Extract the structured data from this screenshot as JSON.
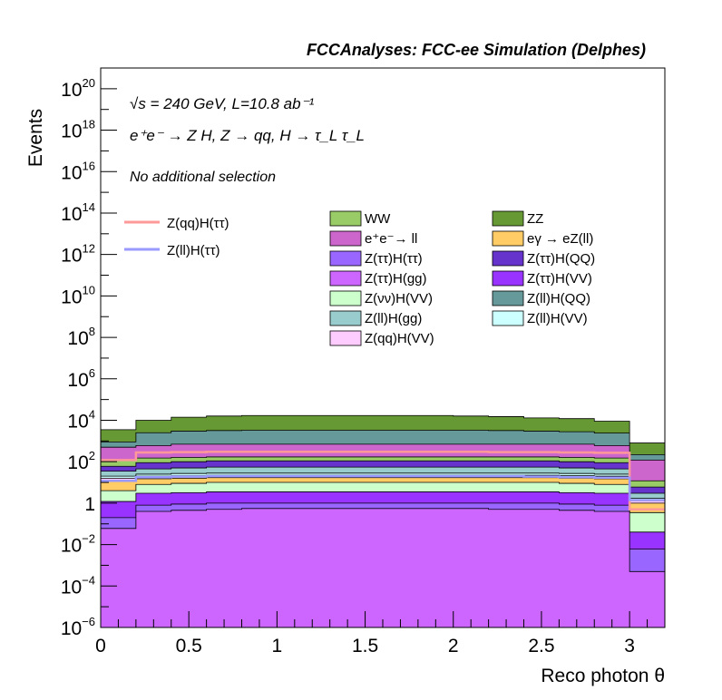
{
  "chart_data": {
    "type": "stacked_histogram",
    "title": "FCCAnalyses: FCC-ee Simulation (Delphes)",
    "annotations": {
      "energy_lumi": "√s = 240 GeV, L=10.8 ab⁻¹",
      "process": "e⁺e⁻ → Z H, Z → qq, H → τ_L τ_L",
      "selection": "No additional selection"
    },
    "xlabel": "Reco photon θ",
    "ylabel": "Events",
    "xlim": [
      0,
      3.2
    ],
    "ylim": [
      1e-06,
      1e+21
    ],
    "yscale": "log",
    "x_ticks": [
      "0",
      "0.5",
      "1",
      "1.5",
      "2",
      "2.5",
      "3"
    ],
    "x_tick_values": [
      0,
      0.5,
      1,
      1.5,
      2,
      2.5,
      3
    ],
    "y_ticks": [
      {
        "base": "10",
        "exp": "−6",
        "value": 1e-06
      },
      {
        "base": "10",
        "exp": "−4",
        "value": 0.0001
      },
      {
        "base": "10",
        "exp": "−2",
        "value": 0.01
      },
      {
        "base": "1",
        "exp": "",
        "value": 1
      },
      {
        "base": "10",
        "exp": "2",
        "value": 100.0
      },
      {
        "base": "10",
        "exp": "4",
        "value": 10000.0
      },
      {
        "base": "10",
        "exp": "6",
        "value": 1000000.0
      },
      {
        "base": "10",
        "exp": "8",
        "value": 100000000.0
      },
      {
        "base": "10",
        "exp": "10",
        "value": 10000000000.0
      },
      {
        "base": "10",
        "exp": "12",
        "value": 1000000000000.0
      },
      {
        "base": "10",
        "exp": "14",
        "value": 100000000000000.0
      },
      {
        "base": "10",
        "exp": "16",
        "value": 1e+16
      },
      {
        "base": "10",
        "exp": "18",
        "value": 1e+18
      },
      {
        "base": "10",
        "exp": "20",
        "value": 1e+20
      }
    ],
    "bin_edges": [
      0,
      0.2,
      0.4,
      0.6,
      0.8,
      1.0,
      1.2,
      1.4,
      1.6,
      1.8,
      2.0,
      2.2,
      2.4,
      2.6,
      2.8,
      3.0,
      3.2
    ],
    "stack_cumulative_top": [
      {
        "name": "Z(ττ)H(gg)",
        "color": "#cc66ff",
        "values": [
          0.06,
          0.4,
          0.45,
          0.5,
          0.55,
          0.55,
          0.55,
          0.55,
          0.55,
          0.55,
          0.55,
          0.5,
          0.5,
          0.45,
          0.4,
          0.0005
        ]
      },
      {
        "name": "Z(ττ)H(ττ)",
        "color": "#9966ff",
        "values": [
          0.2,
          0.8,
          0.9,
          1.0,
          1.0,
          1.0,
          1.0,
          1.0,
          1.0,
          1.0,
          1.0,
          1.0,
          1.0,
          0.9,
          0.8,
          0.006
        ]
      },
      {
        "name": "Z(ττ)H(VV)",
        "color": "#9933ff",
        "values": [
          1.2,
          3.0,
          3.2,
          3.5,
          3.5,
          3.5,
          3.5,
          3.5,
          3.5,
          3.5,
          3.5,
          3.5,
          3.5,
          3.2,
          3.0,
          0.04
        ]
      },
      {
        "name": "Z(νν)H(VV)",
        "color": "#ccffcc",
        "values": [
          4,
          8,
          9,
          10,
          10,
          10,
          10,
          10,
          10,
          10,
          10,
          10,
          10,
          9,
          8,
          0.35
        ]
      },
      {
        "name": "eγ → eZ(ll)",
        "color": "#ffcc66",
        "values": [
          12,
          15,
          16,
          17,
          17,
          17,
          17,
          17,
          17,
          17,
          17,
          17,
          17,
          16,
          15,
          1.0
        ]
      },
      {
        "name": "Z(qq)H(VV)",
        "color": "#ffccff",
        "values": [
          16,
          20,
          21,
          22,
          22,
          22,
          22,
          22,
          22,
          22,
          22,
          22,
          22,
          21,
          20,
          1.3
        ]
      },
      {
        "name": "Z(ll)H(VV)",
        "color": "#ccffff",
        "values": [
          20,
          25,
          27,
          28,
          28,
          28,
          28,
          28,
          28,
          28,
          28,
          28,
          28,
          27,
          25,
          1.7
        ]
      },
      {
        "name": "Z(ll)H(gg)",
        "color": "#99cccc",
        "values": [
          35,
          45,
          50,
          55,
          55,
          55,
          55,
          55,
          55,
          55,
          55,
          55,
          55,
          50,
          45,
          3
        ]
      },
      {
        "name": "Z(ττ)H(QQ)",
        "color": "#6633cc",
        "values": [
          60,
          90,
          100,
          110,
          110,
          110,
          110,
          110,
          110,
          110,
          110,
          110,
          110,
          100,
          90,
          6
        ]
      },
      {
        "name": "WW",
        "color": "#99cc66",
        "values": [
          120,
          150,
          160,
          170,
          170,
          170,
          170,
          170,
          170,
          170,
          170,
          170,
          170,
          160,
          150,
          12
        ]
      },
      {
        "name": "e⁺e⁻→ ll",
        "color": "#cc66cc",
        "values": [
          500,
          600,
          700,
          700,
          700,
          700,
          700,
          700,
          700,
          700,
          700,
          700,
          700,
          700,
          600,
          120
        ]
      },
      {
        "name": "Z(ll)H(QQ)",
        "color": "#669999",
        "values": [
          900,
          2500,
          3000,
          3200,
          3300,
          3300,
          3300,
          3300,
          3300,
          3300,
          3300,
          3200,
          3000,
          2800,
          2400,
          220
        ]
      },
      {
        "name": "ZZ",
        "color": "#669933",
        "values": [
          3500,
          10000,
          14000,
          16000,
          17000,
          17000,
          17000,
          17000,
          17000,
          17000,
          16000,
          15000,
          13000,
          12000,
          9000,
          800
        ]
      }
    ],
    "signal_lines": [
      {
        "name": "Z(qq)H(ττ)",
        "color": "#ff9999",
        "values": [
          120,
          280,
          290,
          300,
          300,
          300,
          300,
          300,
          300,
          300,
          300,
          290,
          290,
          280,
          270,
          0.5
        ]
      },
      {
        "name": "Z(ll)H(ττ)",
        "color": "#9999ff",
        "values": [
          12,
          18,
          19,
          20,
          20,
          20,
          20,
          20,
          20,
          20,
          20,
          20,
          19,
          18,
          17,
          1.4
        ]
      }
    ],
    "legend": {
      "lines": [
        {
          "label": "Z(qq)H(ττ)",
          "color": "#ff9999"
        },
        {
          "label": "Z(ll)H(ττ)",
          "color": "#9999ff"
        }
      ],
      "col1": [
        {
          "label": "WW",
          "color": "#99cc66"
        },
        {
          "label": "e⁺e⁻→ ll",
          "color": "#cc66cc"
        },
        {
          "label": "Z(ττ)H(ττ)",
          "color": "#9966ff"
        },
        {
          "label": "Z(ττ)H(gg)",
          "color": "#cc66ff"
        },
        {
          "label": "Z(νν)H(VV)",
          "color": "#ccffcc"
        },
        {
          "label": "Z(ll)H(gg)",
          "color": "#99cccc"
        },
        {
          "label": "Z(qq)H(VV)",
          "color": "#ffccff"
        }
      ],
      "col2": [
        {
          "label": "ZZ",
          "color": "#669933"
        },
        {
          "label": "eγ → eZ(ll)",
          "color": "#ffcc66"
        },
        {
          "label": "Z(ττ)H(QQ)",
          "color": "#6633cc"
        },
        {
          "label": "Z(ττ)H(VV)",
          "color": "#9933ff"
        },
        {
          "label": "Z(ll)H(QQ)",
          "color": "#669999"
        },
        {
          "label": "Z(ll)H(VV)",
          "color": "#ccffff"
        }
      ]
    }
  }
}
